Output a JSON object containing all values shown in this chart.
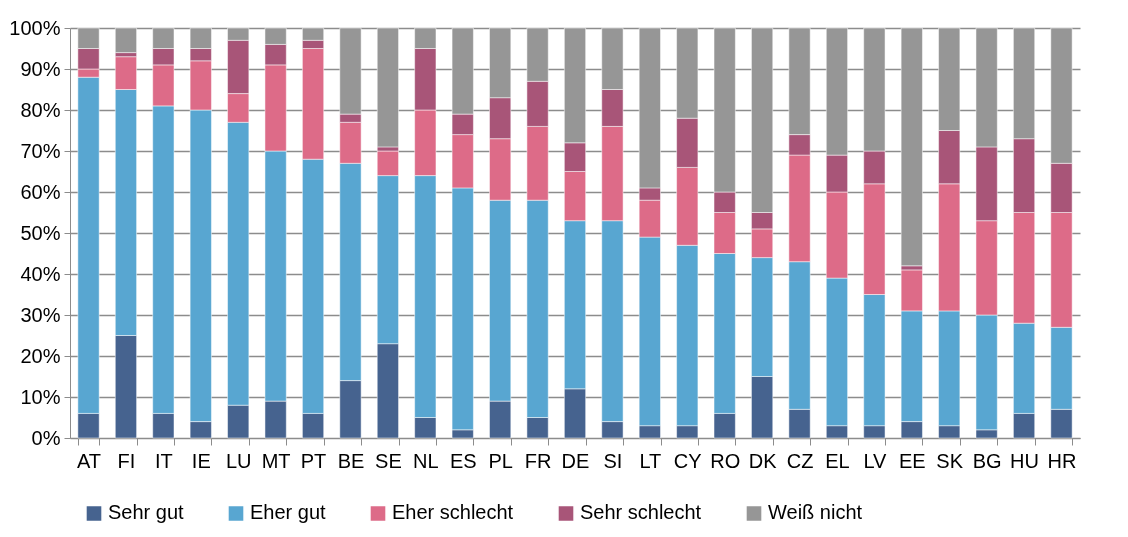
{
  "chart_data": {
    "type": "bar",
    "stacked": true,
    "categories": [
      "AT",
      "FI",
      "IT",
      "IE",
      "LU",
      "MT",
      "PT",
      "BE",
      "SE",
      "NL",
      "ES",
      "PL",
      "FR",
      "DE",
      "SI",
      "LT",
      "CY",
      "RO",
      "DK",
      "CZ",
      "EL",
      "LV",
      "EE",
      "SK",
      "BG",
      "HU",
      "HR"
    ],
    "series": [
      {
        "name": "Sehr gut",
        "color": "#46638f",
        "values": [
          6,
          25,
          6,
          4,
          8,
          9,
          6,
          14,
          23,
          5,
          2,
          9,
          5,
          12,
          4,
          3,
          3,
          6,
          15,
          7,
          3,
          3,
          4,
          3,
          2,
          6,
          7
        ]
      },
      {
        "name": "Eher gut",
        "color": "#58a6d1",
        "values": [
          82,
          60,
          75,
          76,
          69,
          61,
          62,
          53,
          41,
          59,
          59,
          49,
          53,
          41,
          49,
          46,
          44,
          39,
          29,
          36,
          36,
          32,
          27,
          28,
          28,
          22,
          20
        ]
      },
      {
        "name": "Eher schlecht",
        "color": "#dd6b88",
        "values": [
          2,
          8,
          10,
          12,
          7,
          21,
          27,
          10,
          6,
          16,
          13,
          15,
          18,
          12,
          23,
          9,
          19,
          10,
          7,
          26,
          21,
          27,
          10,
          31,
          23,
          27,
          28
        ]
      },
      {
        "name": "Sehr schlecht",
        "color": "#a85578",
        "values": [
          5,
          1,
          4,
          3,
          13,
          5,
          2,
          2,
          1,
          15,
          5,
          10,
          11,
          7,
          9,
          3,
          12,
          5,
          4,
          5,
          9,
          8,
          1,
          13,
          18,
          18,
          12
        ]
      },
      {
        "name": "Weiß nicht",
        "color": "#969696",
        "values": [
          5,
          6,
          5,
          5,
          3,
          4,
          3,
          21,
          29,
          5,
          21,
          17,
          13,
          28,
          15,
          39,
          22,
          40,
          45,
          26,
          31,
          30,
          58,
          25,
          29,
          27,
          33
        ]
      }
    ],
    "ylim": [
      0,
      100
    ],
    "yticks": [
      {
        "value": 0,
        "label": "0%"
      },
      {
        "value": 10,
        "label": "10%"
      },
      {
        "value": 20,
        "label": "20%"
      },
      {
        "value": 30,
        "label": "30%"
      },
      {
        "value": 40,
        "label": "40%"
      },
      {
        "value": 50,
        "label": "50%"
      },
      {
        "value": 60,
        "label": "60%"
      },
      {
        "value": 70,
        "label": "70%"
      },
      {
        "value": 80,
        "label": "80%"
      },
      {
        "value": 90,
        "label": "90%"
      },
      {
        "value": 100,
        "label": "100%"
      }
    ],
    "grid": "y",
    "legend": "bottom"
  }
}
